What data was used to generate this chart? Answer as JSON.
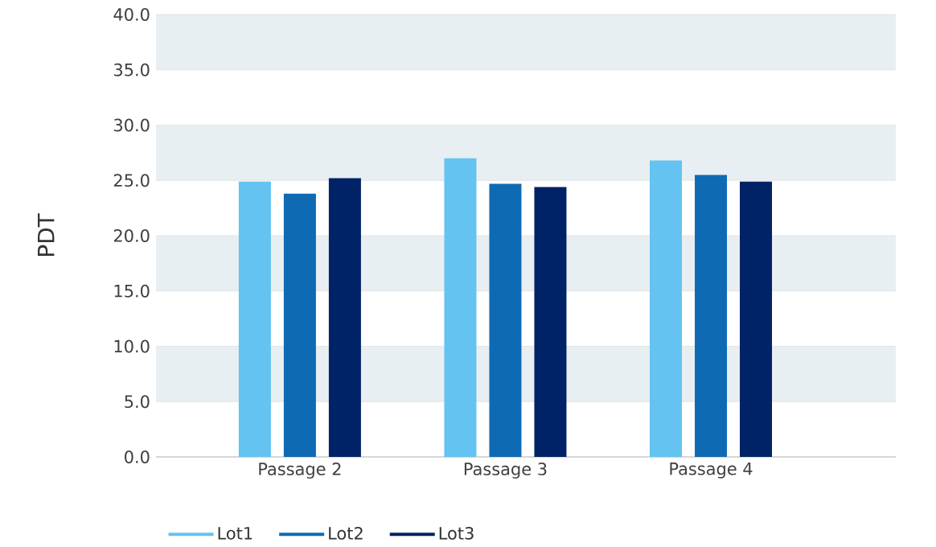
{
  "chart_data": {
    "type": "bar",
    "ylabel": "PDT",
    "categories": [
      "Passage 2",
      "Passage 3",
      "Passage 4"
    ],
    "series": [
      {
        "name": "Lot1",
        "color": "#64c3f0",
        "values": [
          24.9,
          27.0,
          26.8
        ]
      },
      {
        "name": "Lot2",
        "color": "#0f6ab4",
        "values": [
          23.8,
          24.7,
          25.5
        ]
      },
      {
        "name": "Lot3",
        "color": "#002266",
        "values": [
          25.2,
          24.4,
          24.9
        ]
      }
    ],
    "ylim": [
      0,
      40
    ],
    "yticks": [
      {
        "value": 0,
        "label": "0.0"
      },
      {
        "value": 5,
        "label": "5.0"
      },
      {
        "value": 10,
        "label": "10.0"
      },
      {
        "value": 15,
        "label": "15.0"
      },
      {
        "value": 20,
        "label": "20.0"
      },
      {
        "value": 25,
        "label": "25.0"
      },
      {
        "value": 30,
        "label": "30.0"
      },
      {
        "value": 35,
        "label": "35.0"
      },
      {
        "value": 40,
        "label": "40.0"
      }
    ],
    "bands": [
      {
        "axis": "y",
        "from": 5,
        "to": 10,
        "color": "#e8eff3"
      },
      {
        "axis": "y",
        "from": 15,
        "to": 20,
        "color": "#e8eff3"
      },
      {
        "axis": "y",
        "from": 25,
        "to": 30,
        "color": "#e8eff3"
      },
      {
        "axis": "y",
        "from": 35,
        "to": 40,
        "color": "#e8eff3"
      }
    ],
    "grid": "y",
    "legend": "bottom"
  }
}
